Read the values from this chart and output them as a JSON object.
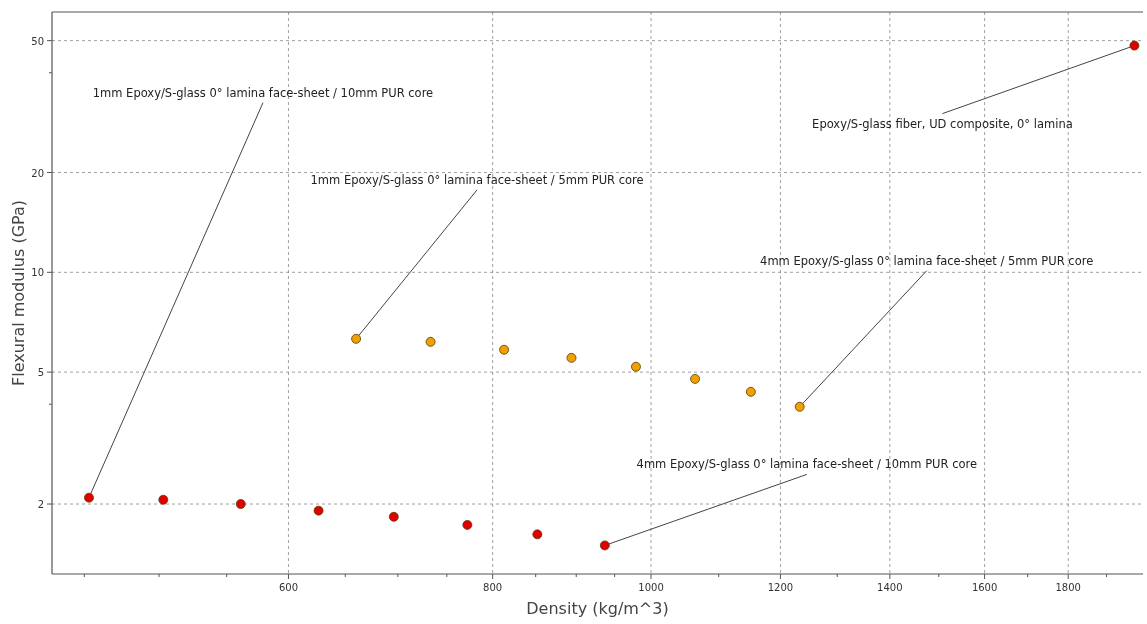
{
  "chart_data": {
    "type": "scatter",
    "xlabel": "Density (kg/m^3)",
    "ylabel": "Flexural modulus (GPa)",
    "log": "xy",
    "grid": true,
    "marker": "circle",
    "xlim": [
      430,
      2000
    ],
    "ylim": [
      1.23,
      61
    ],
    "xticks": [
      {
        "value": 450,
        "label": null
      },
      {
        "value": 500,
        "label": null
      },
      {
        "value": 550,
        "label": null
      },
      600,
      {
        "value": 650,
        "label": null
      },
      {
        "value": 700,
        "label": null
      },
      {
        "value": 750,
        "label": null
      },
      800,
      {
        "value": 850,
        "label": null
      },
      {
        "value": 900,
        "label": null
      },
      {
        "value": 950,
        "label": null
      },
      1000,
      {
        "value": 1100,
        "label": null
      },
      1200,
      {
        "value": 1300,
        "label": null
      },
      1400,
      {
        "value": 1500,
        "label": null
      },
      1600,
      {
        "value": 1700,
        "label": null
      },
      1800,
      {
        "value": 1900,
        "label": null
      }
    ],
    "yticks": [
      2,
      {
        "value": 4,
        "label": null
      },
      5,
      10,
      20,
      {
        "value": 40,
        "label": null
      },
      50
    ],
    "series": [
      {
        "color": "#e00000",
        "x": [
          453,
          503,
          561,
          626,
          696,
          772,
          852,
          937,
          1976
        ],
        "values": [
          2.09,
          2.06,
          2.0,
          1.91,
          1.83,
          1.73,
          1.62,
          1.5,
          48.3
        ]
      },
      {
        "color": "#f0a000",
        "x": [
          660,
          733,
          813,
          894,
          979,
          1064,
          1151,
          1233
        ],
        "values": [
          6.3,
          6.17,
          5.84,
          5.52,
          5.19,
          4.77,
          4.36,
          3.93
        ]
      }
    ],
    "annotations": [
      {
        "text": "1mm Epoxy/S-glass 0° lamina face-sheet / 10mm PUR core",
        "x": 453,
        "y": 2.09
      },
      {
        "text": "1mm Epoxy/S-glass 0° lamina face-sheet / 5mm PUR core",
        "x": 660,
        "y": 6.3
      },
      {
        "text": "Epoxy/S-glass fiber, UD composite, 0° lamina",
        "x": 1976,
        "y": 48.3
      },
      {
        "text": "4mm Epoxy/S-glass 0° lamina face-sheet / 5mm PUR core",
        "x": 1233,
        "y": 3.93
      },
      {
        "text": "4mm Epoxy/S-glass 0° lamina face-sheet / 10mm PUR core",
        "x": 937,
        "y": 1.5
      }
    ]
  }
}
